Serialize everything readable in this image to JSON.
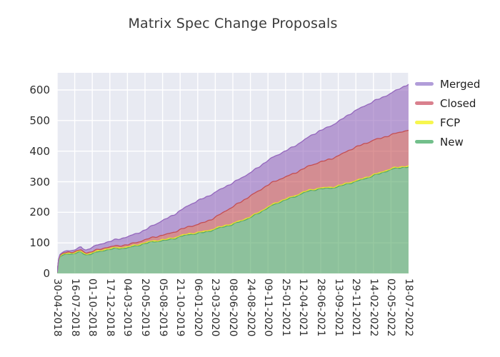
{
  "title": "Matrix Spec Change Proposals",
  "legend": {
    "position": "right",
    "items": [
      {
        "label": "Merged",
        "color": "#b19dd9"
      },
      {
        "label": "Closed",
        "color": "#d9808d"
      },
      {
        "label": "FCP",
        "color": "#f7f64e"
      },
      {
        "label": "New",
        "color": "#72bf8b"
      }
    ]
  },
  "y_axis": {
    "ticks": [
      "600",
      "500",
      "400",
      "300",
      "200",
      "100",
      "0"
    ]
  },
  "x_axis": {
    "tick_labels": [
      "30-04-2018",
      "16-07-2018",
      "01-10-2018",
      "17-12-2018",
      "04-03-2019",
      "20-05-2019",
      "05-08-2019",
      "21-10-2019",
      "06-01-2020",
      "23-03-2020",
      "08-06-2020",
      "24-08-2020",
      "09-11-2020",
      "25-01-2021",
      "12-04-2021",
      "28-06-2021",
      "13-09-2021",
      "29-11-2021",
      "14-02-2022",
      "02-05-2022",
      "18-07-2022"
    ]
  },
  "colors": {
    "plot_background": "#e8eaf2",
    "grid": "#ffffff",
    "title_text": "#3a3a3a",
    "tick_text": "#2e2e2e"
  },
  "chart_data": {
    "type": "area",
    "stacked": true,
    "title": "Matrix Spec Change Proposals",
    "xlabel": "",
    "ylabel": "",
    "ylim": [
      0,
      650
    ],
    "grid": true,
    "legend_position": "right",
    "x_tick_labels": [
      "30-04-2018",
      "16-07-2018",
      "01-10-2018",
      "17-12-2018",
      "04-03-2019",
      "20-05-2019",
      "05-08-2019",
      "21-10-2019",
      "06-01-2020",
      "23-03-2020",
      "08-06-2020",
      "24-08-2020",
      "09-11-2020",
      "25-01-2021",
      "12-04-2021",
      "28-06-2021",
      "13-09-2021",
      "29-11-2021",
      "14-02-2022",
      "02-05-2022",
      "18-07-2022"
    ],
    "x_unit_note": "x_units are in tick-index units: 0 = 30-04-2018, 20 = 18-07-2022 (ticks every 77 days)",
    "x_units": [
      0,
      0.1,
      0.35,
      1,
      1.35,
      1.65,
      2,
      3,
      4,
      5,
      6,
      7,
      8,
      9,
      10,
      11,
      12,
      13,
      14,
      15,
      16,
      17,
      18,
      19,
      20
    ],
    "series": [
      {
        "name": "New",
        "fill": "#55a868",
        "fill_opacity": 0.62,
        "stroke": "#55a868",
        "values": [
          2,
          52,
          60,
          64,
          71,
          62,
          67,
          77,
          86,
          96,
          108,
          120,
          130,
          146,
          158,
          185,
          213,
          242,
          263,
          276,
          285,
          298,
          322,
          338,
          350
        ]
      },
      {
        "name": "FCP",
        "fill": "#f0ec3a",
        "fill_opacity": 0.8,
        "stroke": "#e3de2f",
        "values": [
          1,
          2,
          3,
          3,
          3,
          3,
          3,
          3,
          3,
          3,
          3,
          3,
          3,
          3,
          3,
          3,
          3,
          3,
          3,
          3,
          3,
          3,
          3,
          3,
          3
        ]
      },
      {
        "name": "Closed",
        "fill": "#c44e52",
        "fill_opacity": 0.6,
        "stroke": "#c44e52",
        "values": [
          0,
          2,
          3,
          3,
          4,
          4,
          4,
          5,
          7,
          9,
          15,
          20,
          26,
          36,
          55,
          68,
          72,
          72,
          76,
          85,
          98,
          110,
          113,
          110,
          117
        ]
      },
      {
        "name": "Merged",
        "fill": "#9467bd",
        "fill_opacity": 0.6,
        "stroke": "#9467bd",
        "values": [
          0,
          2,
          4,
          6,
          9,
          9,
          14,
          18,
          26,
          32,
          48,
          62,
          78,
          82,
          78,
          76,
          80,
          85,
          92,
          103,
          112,
          120,
          127,
          136,
          150
        ]
      }
    ],
    "final_totals": {
      "New": 350,
      "FCP": 3,
      "Closed": 117,
      "Merged": 150,
      "total": 620
    }
  }
}
